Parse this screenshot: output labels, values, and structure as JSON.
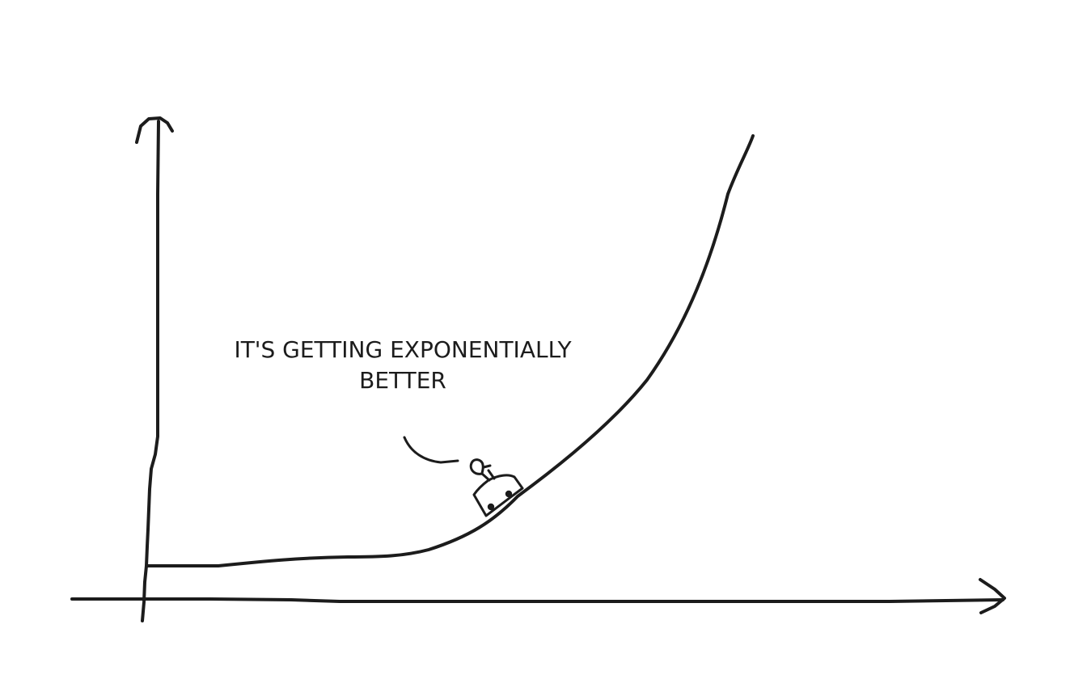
{
  "caption": {
    "line1": "IT'S GETTING EXPONENTIALLY",
    "line2": "BETTER"
  },
  "colors": {
    "ink": "#1c1c1c",
    "background": "#ffffff"
  }
}
